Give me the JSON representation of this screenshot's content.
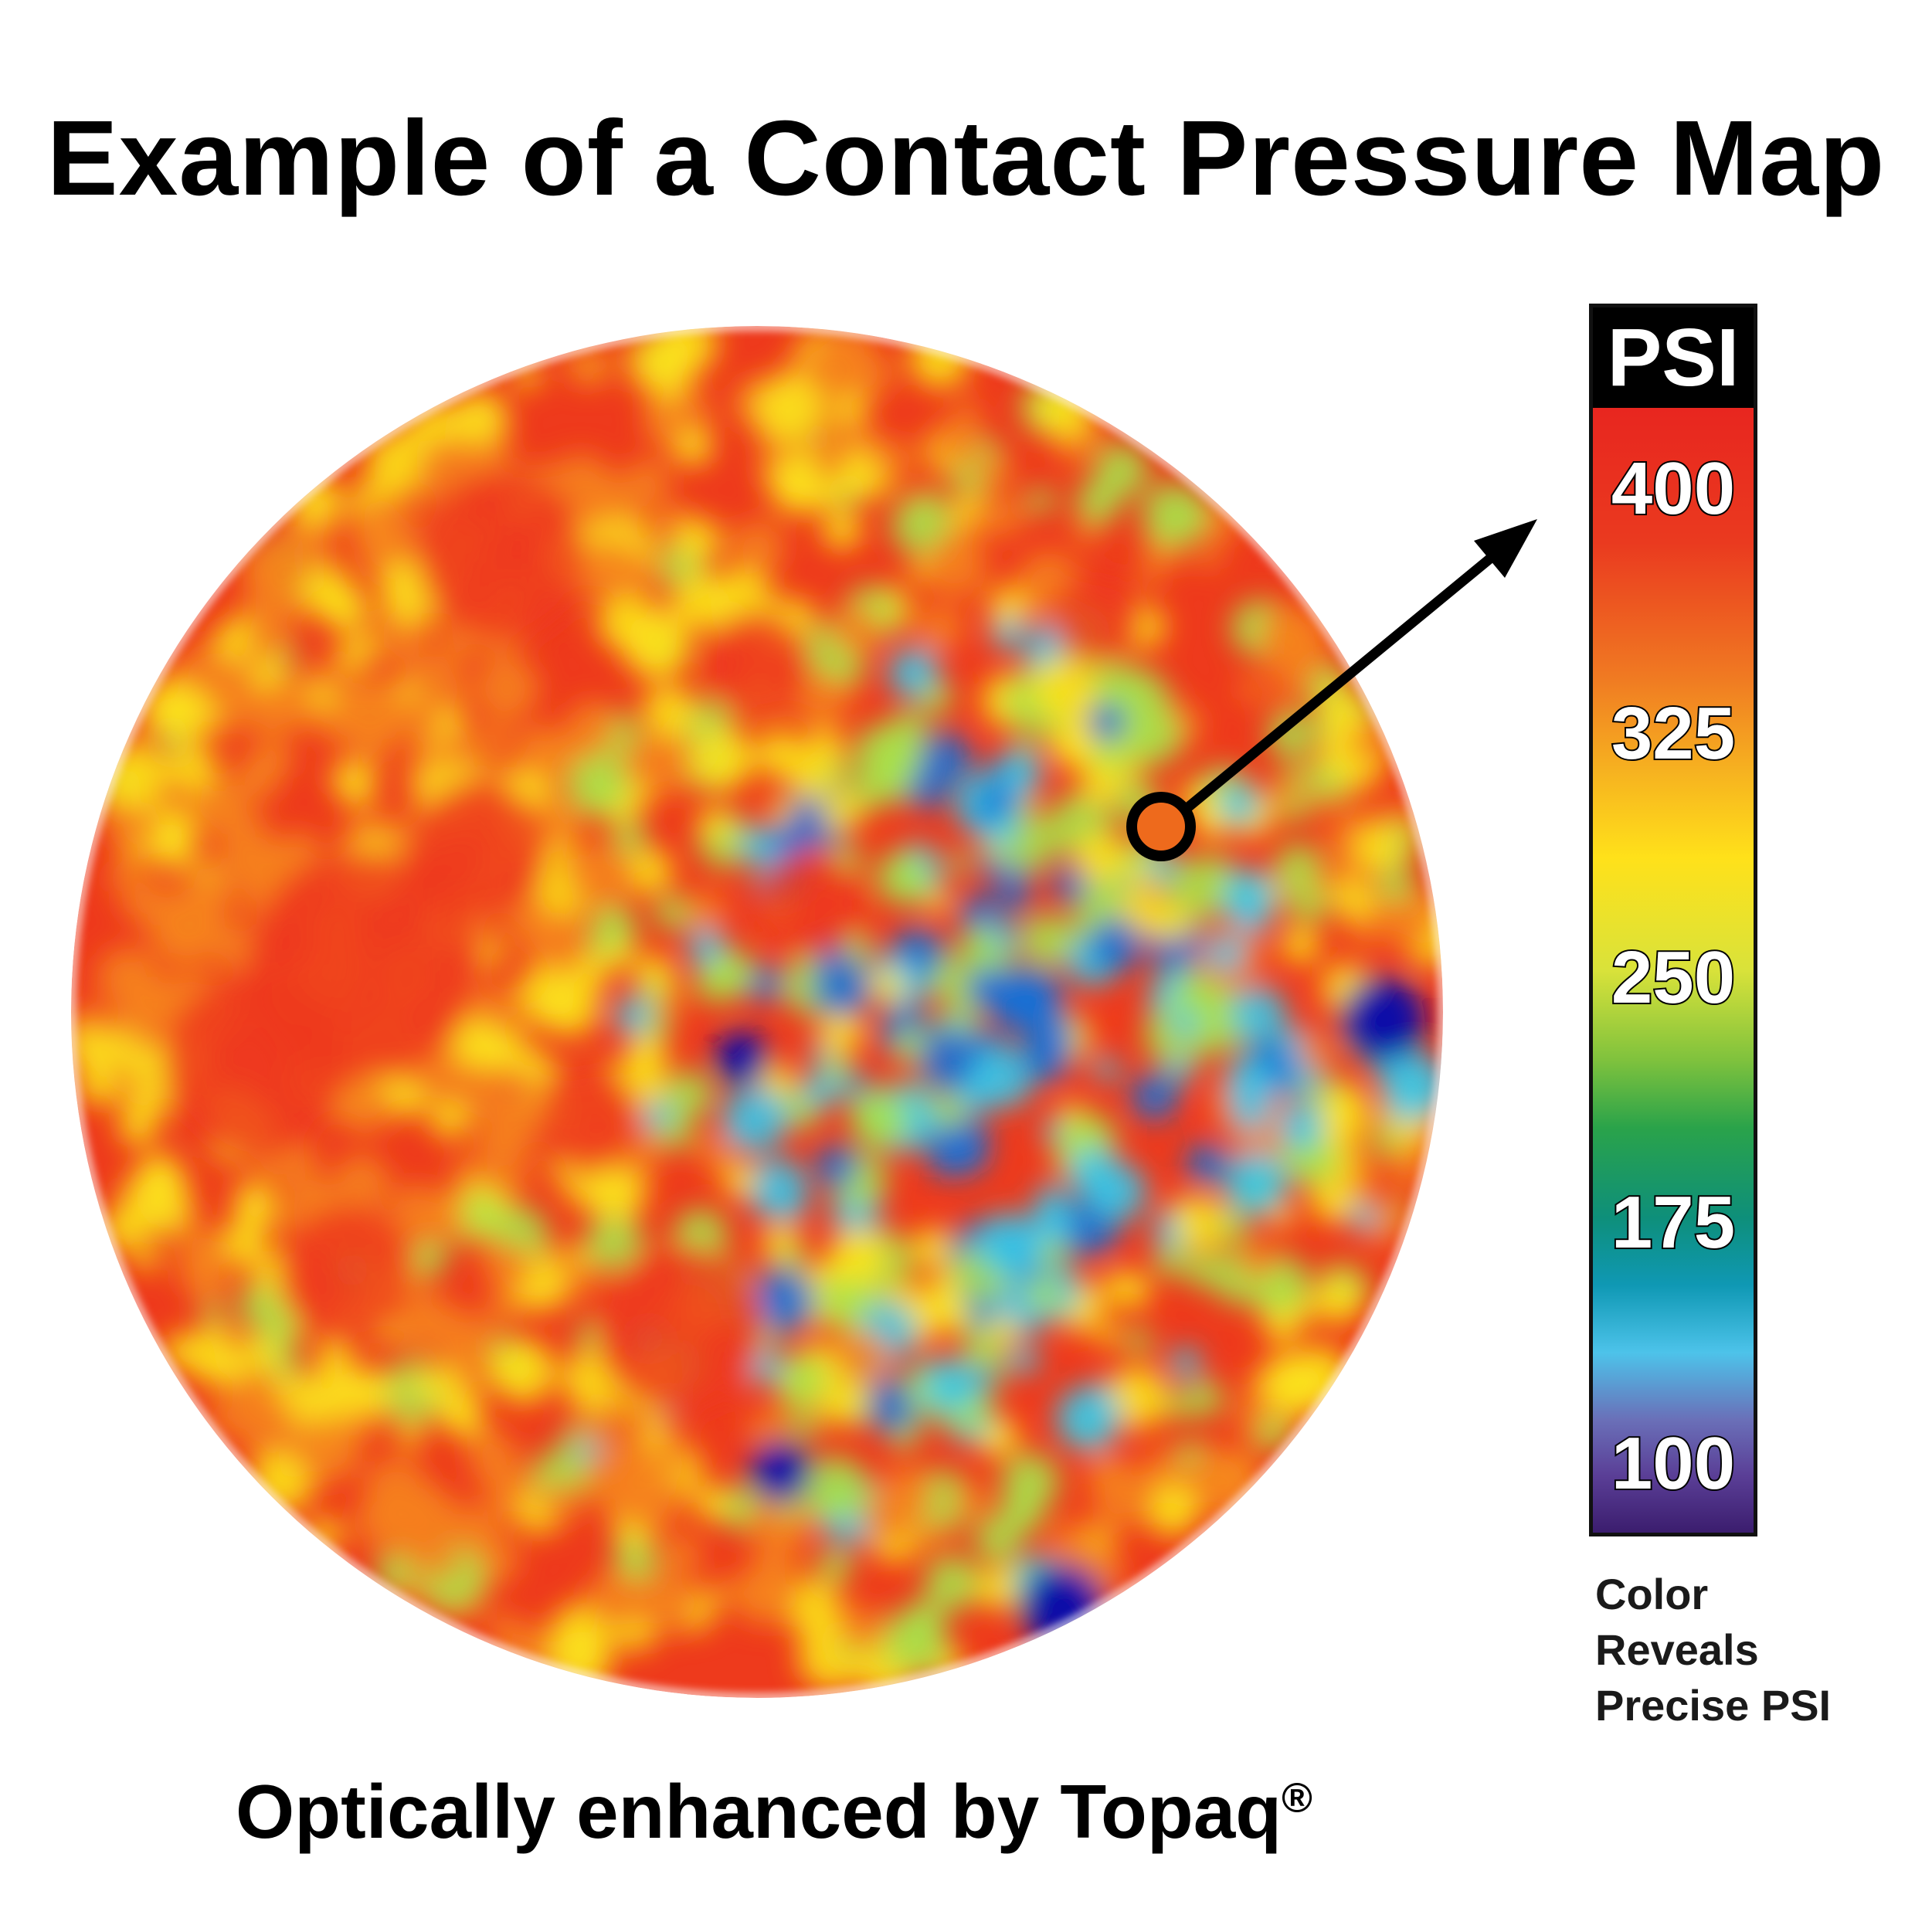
{
  "title": "Example of a Contact Pressure Map",
  "chart_data": {
    "type": "heatmap",
    "title": "Example of a Contact Pressure Map",
    "colorbar": {
      "label": "PSI",
      "ticks": [
        400,
        325,
        250,
        175,
        100
      ],
      "tick_labels": [
        "400",
        "325",
        "250",
        "175",
        "100"
      ],
      "range": [
        100,
        400
      ],
      "colors": [
        "#e8261f",
        "#f07a22",
        "#ffe11a",
        "#7fc23d",
        "#0e8f7a",
        "#4dc3ea",
        "#5a3e96",
        "#3b1d6e"
      ]
    },
    "legend_caption": [
      "Color",
      "Reveals",
      "Precise PSI"
    ],
    "map_colors": {
      "high": "#ee3a1c",
      "orange": "#f5821f",
      "yellow": "#fbe31b",
      "green": "#a9e24a",
      "cyan": "#36c6ea",
      "blue": "#1670d6",
      "deep_blue": "#0b0fa8"
    }
  },
  "footer": {
    "text": "Optically enhanced by Topaq",
    "mark": "®"
  }
}
